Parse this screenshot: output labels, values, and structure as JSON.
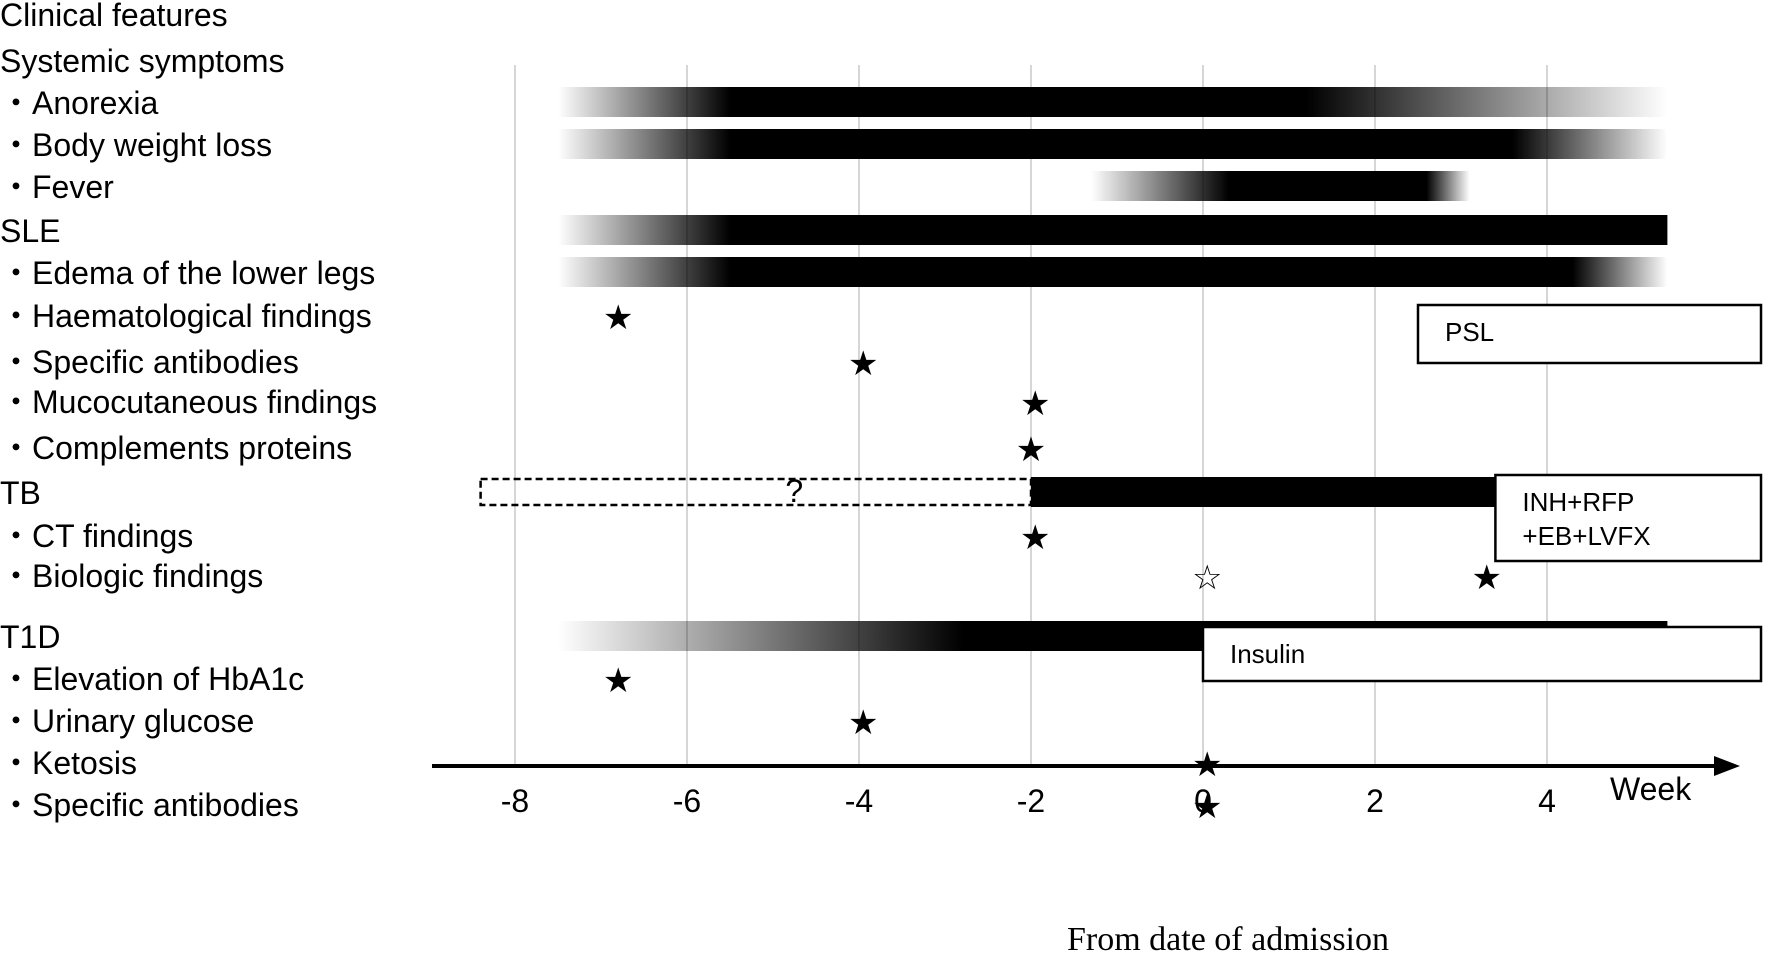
{
  "heading": "Clinical features",
  "rows": [
    {
      "label": "Systemic symptoms",
      "kind": "header"
    },
    {
      "label": "・Anorexia",
      "kind": "item"
    },
    {
      "label": "・Body weight loss",
      "kind": "item"
    },
    {
      "label": "・Fever",
      "kind": "item"
    },
    {
      "label": "SLE",
      "kind": "header"
    },
    {
      "label": "・Edema of the lower  legs",
      "kind": "item"
    },
    {
      "label": "・Haematological findings",
      "kind": "item"
    },
    {
      "label": "・Specific antibodies",
      "kind": "item"
    },
    {
      "label": "・Mucocutaneous  findings",
      "kind": "item"
    },
    {
      "label": "・Complements proteins",
      "kind": "item"
    },
    {
      "label": "TB",
      "kind": "header"
    },
    {
      "label": "・CT findings",
      "kind": "item"
    },
    {
      "label": "・Biologic findings",
      "kind": "item"
    },
    {
      "label": "T1D",
      "kind": "header"
    },
    {
      "label": "・Elevation of HbA1c",
      "kind": "item"
    },
    {
      "label": "・Urinary glucose",
      "kind": "item"
    },
    {
      "label": "・Ketosis",
      "kind": "item"
    },
    {
      "label": "・Specific antibodies",
      "kind": "item"
    }
  ],
  "axis": {
    "ticks": [
      -8,
      -6,
      -4,
      -2,
      0,
      2,
      4
    ],
    "unit": "Week",
    "label": "From date of admission",
    "range": [
      -8,
      5.4
    ]
  },
  "bars": [
    {
      "row": "Anorexia",
      "start": -7.5,
      "end": 5.4,
      "fade_in": [
        -7.5,
        -5.5
      ],
      "fade_out": [
        1.2,
        5.4
      ]
    },
    {
      "row": "Body weight loss",
      "start": -7.5,
      "end": 5.4,
      "fade_in": [
        -7.5,
        -5.5
      ],
      "fade_out": [
        3.6,
        5.4
      ]
    },
    {
      "row": "Fever",
      "start": -1.3,
      "end": 3.1,
      "fade_in": [
        -1.3,
        0.3
      ],
      "fade_out": [
        2.6,
        3.1
      ]
    },
    {
      "row": "SLE",
      "start": -7.5,
      "end": 5.4,
      "fade_in": [
        -7.5,
        -5.5
      ]
    },
    {
      "row": "Edema of the lower legs",
      "start": -7.5,
      "end": 5.4,
      "fade_in": [
        -7.5,
        -5.5
      ],
      "fade_out": [
        4.3,
        5.4
      ]
    },
    {
      "row": "TB",
      "start": -2,
      "end": 5.4,
      "uncertain_start": -8.4,
      "uncertain_label": "?"
    },
    {
      "row": "T1D",
      "start": -7.5,
      "end": 5.4,
      "fade_in": [
        -7.5,
        -2.8
      ]
    }
  ],
  "events": [
    {
      "row": "Haematological findings",
      "week": -6.8,
      "symbol": "★",
      "filled": true
    },
    {
      "row": "Specific antibodies",
      "week": -3.95,
      "symbol": "★",
      "filled": true
    },
    {
      "row": "Mucocutaneous findings",
      "week": -1.95,
      "symbol": "★",
      "filled": true
    },
    {
      "row": "Complements proteins",
      "week": -2.0,
      "symbol": "★",
      "filled": true
    },
    {
      "row": "CT findings",
      "week": -1.95,
      "symbol": "★",
      "filled": true
    },
    {
      "row": "Biologic findings",
      "week": 0.05,
      "symbol": "☆",
      "filled": false
    },
    {
      "row": "Biologic findings",
      "week": 3.3,
      "symbol": "★",
      "filled": true
    },
    {
      "row": "Elevation of HbA1c",
      "week": -6.8,
      "symbol": "★",
      "filled": true
    },
    {
      "row": "Urinary glucose",
      "week": -3.95,
      "symbol": "★",
      "filled": true
    },
    {
      "row": "Ketosis",
      "week": 0.05,
      "symbol": "★",
      "filled": true
    },
    {
      "row": "Specific antibodies",
      "week": 0.05,
      "symbol": "★",
      "filled": true
    }
  ],
  "treatments": [
    {
      "lines": [
        "PSL"
      ],
      "start": 2.5,
      "end": 5.4
    },
    {
      "lines": [
        "INH+RFP",
        "+EB+LVFX"
      ],
      "start": 3.4,
      "end": 5.4
    },
    {
      "lines": [
        "Insulin"
      ],
      "start": 0.0,
      "end": 5.4
    }
  ]
}
